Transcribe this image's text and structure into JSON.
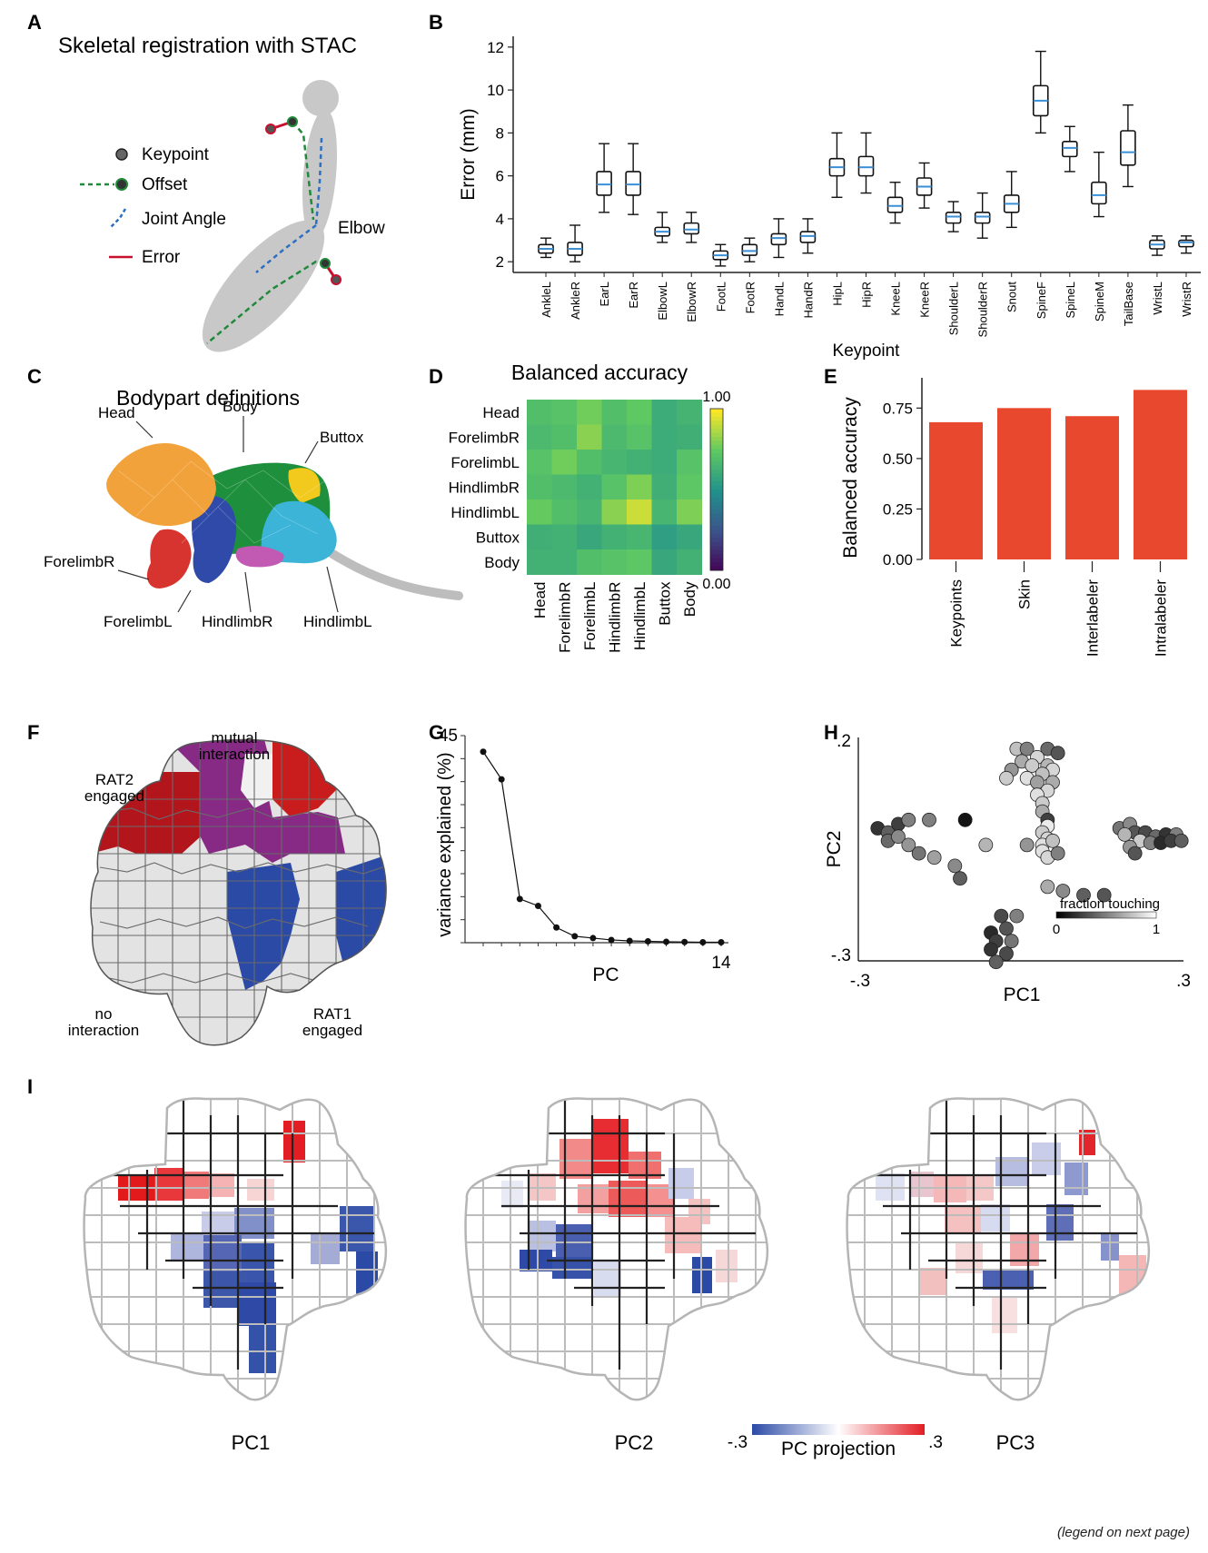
{
  "panels": {
    "A": {
      "letter": "A",
      "title": "Skeletal registration with STAC",
      "legend": [
        "Keypoint",
        "Offset",
        "Joint Angle",
        "Error"
      ],
      "elbow_label": "Elbow"
    },
    "B": {
      "letter": "B"
    },
    "C": {
      "letter": "C",
      "title": "Bodypart definitions",
      "labels": [
        "Head",
        "Body",
        "Buttox",
        "ForelimbR",
        "ForelimbL",
        "HindlimbR",
        "HindlimbL"
      ]
    },
    "D": {
      "letter": "D"
    },
    "E": {
      "letter": "E"
    },
    "F": {
      "letter": "F",
      "labels": [
        "mutual\ninteraction",
        "RAT2\nengaged",
        "no\ninteraction",
        "RAT1\nengaged"
      ]
    },
    "G": {
      "letter": "G"
    },
    "H": {
      "letter": "H"
    },
    "I": {
      "letter": "I",
      "map_titles": [
        "PC1",
        "PC2",
        "PC3"
      ],
      "colorbar": {
        "min_label": "-.3",
        "max_label": ".3",
        "title": "PC projection"
      }
    }
  },
  "footer": "(legend on next page)",
  "colors": {
    "red": "#d7191c",
    "blue": "#2b4aa6",
    "purple": "#8e2c8e",
    "gray_map": "#e6e6e6",
    "bar": "#e8482e",
    "median": "#3a8fd6"
  },
  "chart_data": [
    {
      "id": "B",
      "type": "box",
      "xlabel": "Keypoint",
      "ylabel": "Error (mm)",
      "ylim": [
        1.5,
        12.5
      ],
      "yticks": [
        2,
        4,
        6,
        8,
        10,
        12
      ],
      "categories": [
        "AnkleL",
        "AnkleR",
        "EarL",
        "EarR",
        "ElbowL",
        "ElbowR",
        "FootL",
        "FootR",
        "HandL",
        "HandR",
        "HipL",
        "HipR",
        "KneeL",
        "KneeR",
        "ShoulderL",
        "ShoulderR",
        "Snout",
        "SpineF",
        "SpineL",
        "SpineM",
        "TailBase",
        "WristL",
        "WristR"
      ],
      "boxes": [
        {
          "min": 2.2,
          "q1": 2.4,
          "median": 2.6,
          "q3": 2.8,
          "max": 3.1
        },
        {
          "min": 2.0,
          "q1": 2.3,
          "median": 2.6,
          "q3": 2.9,
          "max": 3.7
        },
        {
          "min": 4.3,
          "q1": 5.1,
          "median": 5.6,
          "q3": 6.2,
          "max": 7.5
        },
        {
          "min": 4.2,
          "q1": 5.1,
          "median": 5.6,
          "q3": 6.2,
          "max": 7.5
        },
        {
          "min": 2.9,
          "q1": 3.2,
          "median": 3.4,
          "q3": 3.6,
          "max": 4.3
        },
        {
          "min": 2.9,
          "q1": 3.3,
          "median": 3.5,
          "q3": 3.8,
          "max": 4.3
        },
        {
          "min": 1.8,
          "q1": 2.1,
          "median": 2.3,
          "q3": 2.5,
          "max": 2.8
        },
        {
          "min": 2.0,
          "q1": 2.3,
          "median": 2.5,
          "q3": 2.8,
          "max": 3.1
        },
        {
          "min": 2.2,
          "q1": 2.8,
          "median": 3.1,
          "q3": 3.3,
          "max": 4.0
        },
        {
          "min": 2.4,
          "q1": 2.9,
          "median": 3.2,
          "q3": 3.4,
          "max": 4.0
        },
        {
          "min": 5.0,
          "q1": 6.0,
          "median": 6.4,
          "q3": 6.8,
          "max": 8.0
        },
        {
          "min": 5.2,
          "q1": 6.0,
          "median": 6.4,
          "q3": 6.9,
          "max": 8.0
        },
        {
          "min": 3.8,
          "q1": 4.3,
          "median": 4.6,
          "q3": 5.0,
          "max": 5.7
        },
        {
          "min": 4.5,
          "q1": 5.1,
          "median": 5.5,
          "q3": 5.9,
          "max": 6.6
        },
        {
          "min": 3.4,
          "q1": 3.8,
          "median": 4.1,
          "q3": 4.3,
          "max": 4.8
        },
        {
          "min": 3.1,
          "q1": 3.8,
          "median": 4.1,
          "q3": 4.3,
          "max": 5.2
        },
        {
          "min": 3.6,
          "q1": 4.3,
          "median": 4.7,
          "q3": 5.1,
          "max": 6.2
        },
        {
          "min": 8.0,
          "q1": 8.8,
          "median": 9.5,
          "q3": 10.2,
          "max": 11.8
        },
        {
          "min": 6.2,
          "q1": 6.9,
          "median": 7.3,
          "q3": 7.6,
          "max": 8.3
        },
        {
          "min": 4.1,
          "q1": 4.7,
          "median": 5.1,
          "q3": 5.7,
          "max": 7.1
        },
        {
          "min": 5.5,
          "q1": 6.5,
          "median": 7.1,
          "q3": 8.1,
          "max": 9.3
        },
        {
          "min": 2.3,
          "q1": 2.6,
          "median": 2.8,
          "q3": 3.0,
          "max": 3.2
        },
        {
          "min": 2.4,
          "q1": 2.7,
          "median": 2.9,
          "q3": 3.0,
          "max": 3.2
        }
      ]
    },
    {
      "id": "D",
      "type": "heatmap",
      "title": "Balanced accuracy",
      "rows": [
        "Head",
        "ForelimbR",
        "ForelimbL",
        "HindlimbR",
        "HindlimbL",
        "Buttox",
        "Body"
      ],
      "cols": [
        "Head",
        "ForelimbR",
        "ForelimbL",
        "HindlimbR",
        "HindlimbL",
        "Buttox",
        "Body"
      ],
      "values": [
        [
          0.7,
          0.72,
          0.78,
          0.7,
          0.75,
          0.62,
          0.65
        ],
        [
          0.68,
          0.7,
          0.82,
          0.68,
          0.72,
          0.62,
          0.63
        ],
        [
          0.72,
          0.78,
          0.7,
          0.66,
          0.64,
          0.62,
          0.72
        ],
        [
          0.7,
          0.68,
          0.64,
          0.72,
          0.8,
          0.63,
          0.74
        ],
        [
          0.76,
          0.7,
          0.66,
          0.82,
          0.92,
          0.66,
          0.8
        ],
        [
          0.63,
          0.64,
          0.6,
          0.64,
          0.66,
          0.56,
          0.6
        ],
        [
          0.64,
          0.64,
          0.7,
          0.72,
          0.74,
          0.6,
          0.64
        ]
      ],
      "vmin": 0.0,
      "vmax": 1.0,
      "colorbar_labels": [
        "1.00",
        "0.00"
      ]
    },
    {
      "id": "E",
      "type": "bar",
      "ylabel": "Balanced accuracy",
      "categories": [
        "Keypoints",
        "Skin",
        "Interlabeler",
        "Intralabeler"
      ],
      "values": [
        0.68,
        0.75,
        0.71,
        0.84
      ],
      "ylim": [
        0,
        0.9
      ],
      "yticks": [
        "0.00",
        "0.25",
        "0.50",
        "0.75"
      ]
    },
    {
      "id": "G",
      "type": "line",
      "xlabel": "PC",
      "ylabel": "variance explained (%)",
      "x": [
        1,
        2,
        3,
        4,
        5,
        6,
        7,
        8,
        9,
        10,
        11,
        12,
        13,
        14
      ],
      "y": [
        41.5,
        35.5,
        9.5,
        8.0,
        3.3,
        1.4,
        1.0,
        0.6,
        0.4,
        0.3,
        0.2,
        0.15,
        0.1,
        0.1
      ],
      "ylim": [
        0,
        45
      ],
      "ytick_labels": [
        "45"
      ],
      "xtick_labels": [
        "14"
      ]
    },
    {
      "id": "H",
      "type": "scatter",
      "xlabel": "PC1",
      "ylabel": "PC2",
      "xlim": [
        -0.3,
        0.3
      ],
      "ylim": [
        -0.3,
        0.2
      ],
      "xtick_labels": [
        "-.3",
        ".3"
      ],
      "ytick_labels": [
        ".2",
        "-.3"
      ],
      "colorbar": {
        "title": "fraction touching",
        "min_label": "0",
        "max_label": "1"
      },
      "points": [
        [
          -0.01,
          0.19,
          0.8
        ],
        [
          0.01,
          0.19,
          0.5
        ],
        [
          0.05,
          0.19,
          0.4
        ],
        [
          0.07,
          0.18,
          0.3
        ],
        [
          0.03,
          0.17,
          0.9
        ],
        [
          0.0,
          0.16,
          0.7
        ],
        [
          0.02,
          0.15,
          0.85
        ],
        [
          0.05,
          0.15,
          0.75
        ],
        [
          -0.02,
          0.14,
          0.6
        ],
        [
          0.06,
          0.14,
          0.9
        ],
        [
          0.04,
          0.13,
          0.8
        ],
        [
          0.01,
          0.12,
          0.95
        ],
        [
          -0.03,
          0.12,
          0.85
        ],
        [
          0.03,
          0.11,
          0.65
        ],
        [
          0.06,
          0.11,
          0.7
        ],
        [
          0.05,
          0.09,
          0.9
        ],
        [
          0.03,
          0.08,
          0.95
        ],
        [
          0.04,
          0.06,
          0.85
        ],
        [
          0.04,
          0.04,
          0.7
        ],
        [
          0.05,
          0.02,
          0.2
        ],
        [
          0.05,
          0.005,
          1.0
        ],
        [
          0.04,
          -0.01,
          0.85
        ],
        [
          0.05,
          -0.025,
          0.9
        ],
        [
          0.04,
          -0.04,
          0.95
        ],
        [
          0.06,
          -0.03,
          0.8
        ],
        [
          0.04,
          -0.055,
          0.95
        ],
        [
          0.05,
          -0.07,
          0.9
        ],
        [
          -0.28,
          0.0,
          0.15
        ],
        [
          -0.26,
          -0.01,
          0.35
        ],
        [
          -0.24,
          0.01,
          0.2
        ],
        [
          -0.22,
          0.02,
          0.5
        ],
        [
          -0.26,
          -0.03,
          0.4
        ],
        [
          -0.24,
          -0.02,
          0.55
        ],
        [
          -0.22,
          -0.04,
          0.6
        ],
        [
          -0.18,
          0.02,
          0.5
        ],
        [
          -0.2,
          -0.06,
          0.45
        ],
        [
          -0.17,
          -0.07,
          0.65
        ],
        [
          -0.13,
          -0.09,
          0.55
        ],
        [
          -0.11,
          0.02,
          0.0
        ],
        [
          -0.12,
          -0.12,
          0.35
        ],
        [
          -0.07,
          -0.04,
          0.75
        ],
        [
          0.01,
          -0.04,
          0.6
        ],
        [
          0.07,
          -0.06,
          0.5
        ],
        [
          0.05,
          -0.14,
          0.7
        ],
        [
          0.08,
          -0.15,
          0.55
        ],
        [
          0.12,
          -0.16,
          0.35
        ],
        [
          0.16,
          -0.16,
          0.3
        ],
        [
          -0.04,
          -0.21,
          0.25
        ],
        [
          -0.01,
          -0.21,
          0.5
        ],
        [
          -0.06,
          -0.25,
          0.1
        ],
        [
          -0.03,
          -0.24,
          0.3
        ],
        [
          -0.05,
          -0.27,
          0.2
        ],
        [
          -0.02,
          -0.27,
          0.45
        ],
        [
          -0.06,
          -0.29,
          0.15
        ],
        [
          -0.03,
          -0.3,
          0.25
        ],
        [
          -0.05,
          -0.32,
          0.35
        ],
        [
          0.19,
          0.0,
          0.45
        ],
        [
          0.21,
          0.01,
          0.55
        ],
        [
          0.22,
          -0.01,
          0.3
        ],
        [
          0.24,
          -0.01,
          0.25
        ],
        [
          0.26,
          -0.02,
          0.4
        ],
        [
          0.28,
          -0.015,
          0.15
        ],
        [
          0.3,
          -0.015,
          0.5
        ],
        [
          0.23,
          -0.03,
          0.85
        ],
        [
          0.25,
          -0.035,
          0.5
        ],
        [
          0.27,
          -0.035,
          0.1
        ],
        [
          0.29,
          -0.03,
          0.2
        ],
        [
          0.31,
          -0.03,
          0.35
        ],
        [
          0.21,
          -0.045,
          0.6
        ],
        [
          0.22,
          -0.06,
          0.3
        ],
        [
          0.2,
          -0.015,
          0.75
        ]
      ]
    }
  ]
}
